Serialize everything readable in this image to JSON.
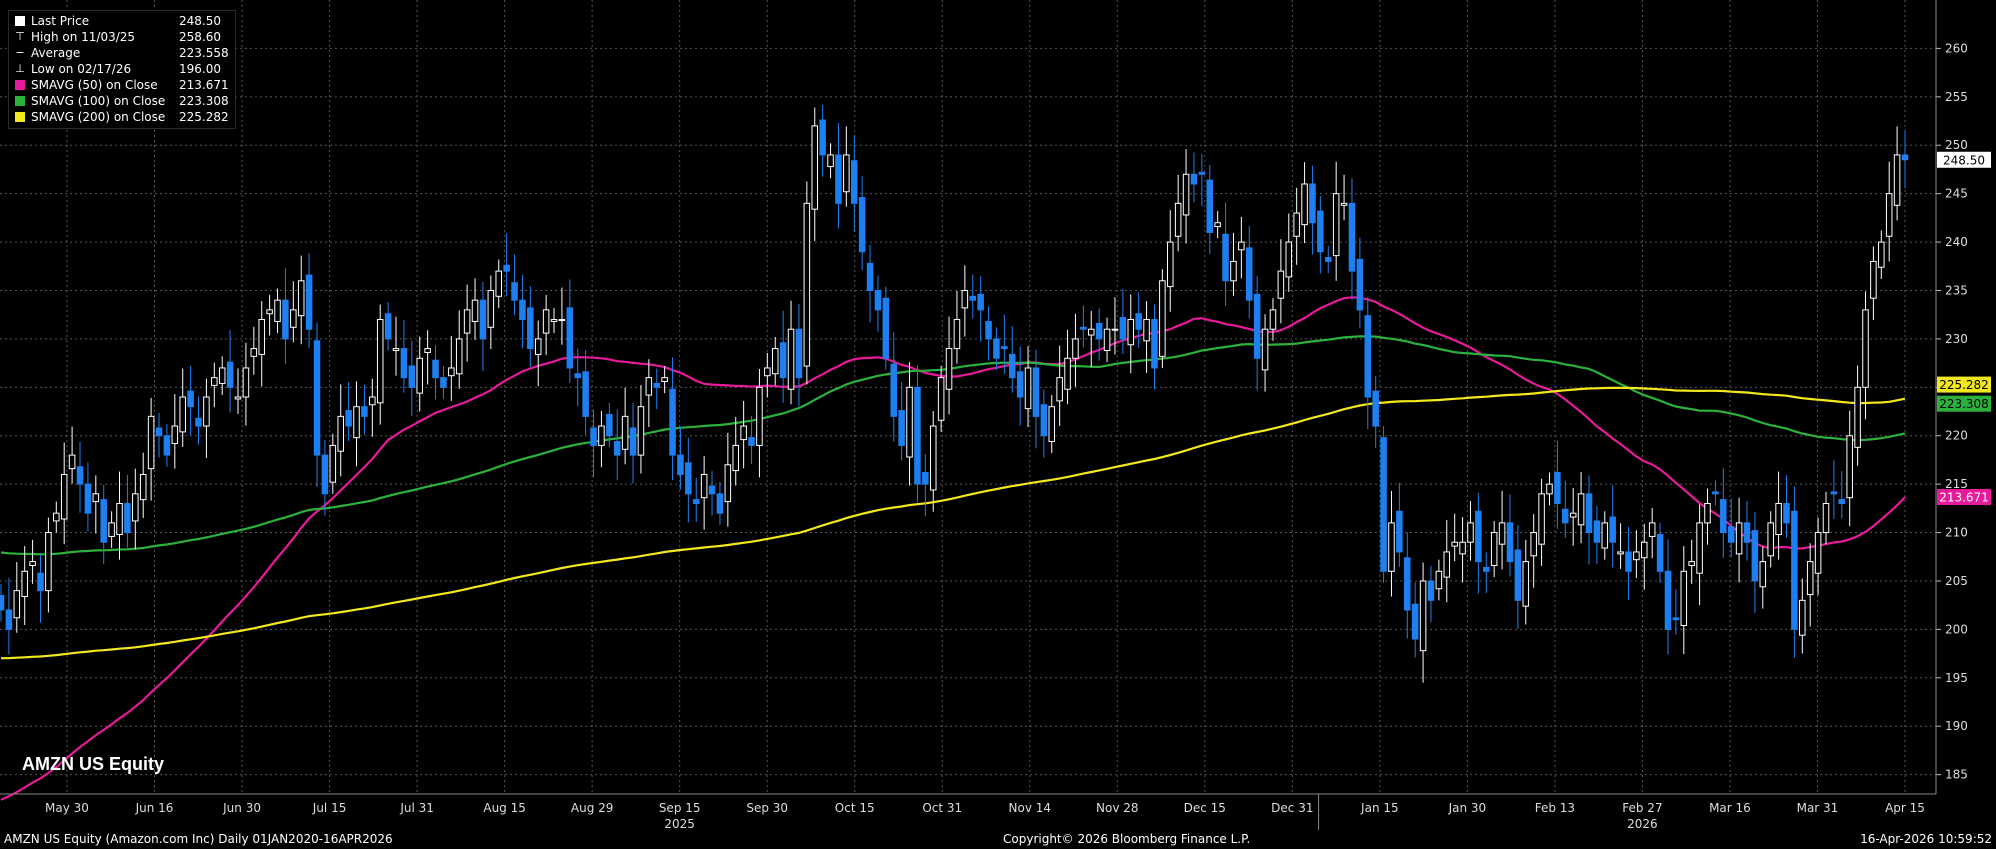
{
  "legend": {
    "items": [
      {
        "label": "Last Price",
        "value": "248.50",
        "marker": "white-square",
        "color": "#ffffff"
      },
      {
        "label": "High on 11/03/25",
        "value": "258.60",
        "marker": "high-marker",
        "color": "#ffffff"
      },
      {
        "label": "Average",
        "value": "223.558",
        "marker": "average-marker",
        "color": "#ffffff"
      },
      {
        "label": "Low on 02/17/26",
        "value": "196.00",
        "marker": "low-marker",
        "color": "#ffffff"
      },
      {
        "label": "SMAVG (50)  on Close",
        "value": "213.671",
        "marker": "magenta-square",
        "color": "#e8199b"
      },
      {
        "label": "SMAVG (100)  on Close",
        "value": "223.308",
        "marker": "green-square",
        "color": "#2bb23d"
      },
      {
        "label": "SMAVG (200)  on Close",
        "value": "225.282",
        "marker": "yellow-square",
        "color": "#f2e81b"
      }
    ]
  },
  "ticker_label": "AMZN US Equity",
  "footer": {
    "left": "AMZN US Equity (Amazon.com Inc) Daily 01JAN2020-16APR2026",
    "center": "Copyright© 2026 Bloomberg Finance L.P.",
    "right": "16-Apr-2026 10:59:52"
  },
  "colors": {
    "background": "#000000",
    "up_candle": "#ffffff",
    "down_candle": "#1e7ff0",
    "grid": "#555555",
    "sma50": "#e8199b",
    "sma100": "#2bb23d",
    "sma200": "#f2e81b"
  },
  "chart_data": {
    "type": "candlestick",
    "x_labels": [
      "May 30",
      "Jun 16",
      "Jun 30",
      "Jul 15",
      "Jul 31",
      "Aug 15",
      "Aug 29",
      "Sep 15",
      "Sep 30",
      "Oct 15",
      "Oct 31",
      "Nov 14",
      "Nov 28",
      "Dec 15",
      "Dec 31",
      "Jan 15",
      "Jan 30",
      "Feb 13",
      "Feb 27",
      "Mar 16",
      "Mar 31",
      "Apr 15"
    ],
    "year_labels": [
      "2025",
      "2026"
    ],
    "y_ticks": [
      185,
      190,
      195,
      200,
      205,
      210,
      215,
      220,
      225,
      230,
      235,
      240,
      245,
      250,
      255,
      260
    ],
    "ylim": [
      183,
      265
    ],
    "right_labels": [
      {
        "value": 248.5,
        "text": "248.50",
        "bg": "#ffffff",
        "fg": "#000000"
      },
      {
        "value": 225.282,
        "text": "225.282",
        "bg": "#f2e81b",
        "fg": "#000000"
      },
      {
        "value": 223.308,
        "text": "223.308",
        "bg": "#2bb23d",
        "fg": "#000000"
      },
      {
        "value": 213.671,
        "text": "213.671",
        "bg": "#e8199b",
        "fg": "#ffffff"
      }
    ],
    "closes": [
      202,
      200,
      204,
      206,
      207,
      204,
      210,
      212,
      216,
      218,
      215,
      212,
      214,
      209,
      211,
      213,
      210,
      214,
      216,
      222,
      220,
      218,
      221,
      224,
      223,
      221,
      224,
      226,
      227,
      225,
      224,
      227,
      229,
      232,
      233,
      234,
      230,
      233,
      236,
      231,
      218,
      214,
      219,
      222,
      221,
      223,
      222,
      224,
      232,
      230,
      229,
      226,
      225,
      228,
      229,
      226,
      225,
      227,
      230,
      233,
      234,
      230,
      235,
      237,
      237,
      234,
      232,
      229,
      230,
      233,
      232,
      232,
      227,
      226,
      222,
      219,
      221,
      220,
      218,
      222,
      218,
      223,
      226,
      225,
      226,
      218,
      216,
      214,
      213,
      216,
      214,
      212,
      217,
      219,
      221,
      219,
      225,
      227,
      229,
      226,
      231,
      226,
      244,
      252,
      249,
      249,
      244,
      249,
      244,
      239,
      235,
      233,
      228,
      222,
      219,
      225,
      215,
      215,
      221,
      226,
      229,
      232,
      235,
      234,
      233,
      230,
      228,
      229,
      226,
      224,
      227,
      222,
      220,
      223,
      226,
      228,
      230,
      231,
      231,
      230,
      231,
      231,
      230,
      232,
      231,
      232,
      227,
      236,
      240,
      244,
      247,
      246,
      247,
      241,
      242,
      236,
      238,
      240,
      234,
      228,
      231,
      233,
      237,
      240,
      243,
      246,
      242,
      239,
      238,
      245,
      244,
      237,
      233,
      224,
      221,
      206,
      211,
      208,
      202,
      199,
      205,
      203,
      206,
      208,
      209,
      209,
      211,
      207,
      206,
      210,
      211,
      207,
      203,
      207,
      210,
      214,
      215,
      213,
      211,
      212,
      214,
      210,
      209,
      211,
      209,
      208,
      206,
      208,
      209,
      211,
      206,
      200,
      201,
      206,
      207,
      211,
      213,
      214,
      210,
      209,
      211,
      209,
      205,
      207,
      211,
      213,
      211,
      200,
      203,
      207,
      210,
      213,
      214,
      213,
      220,
      225,
      233,
      238,
      240,
      245,
      249,
      248.5
    ]
  }
}
